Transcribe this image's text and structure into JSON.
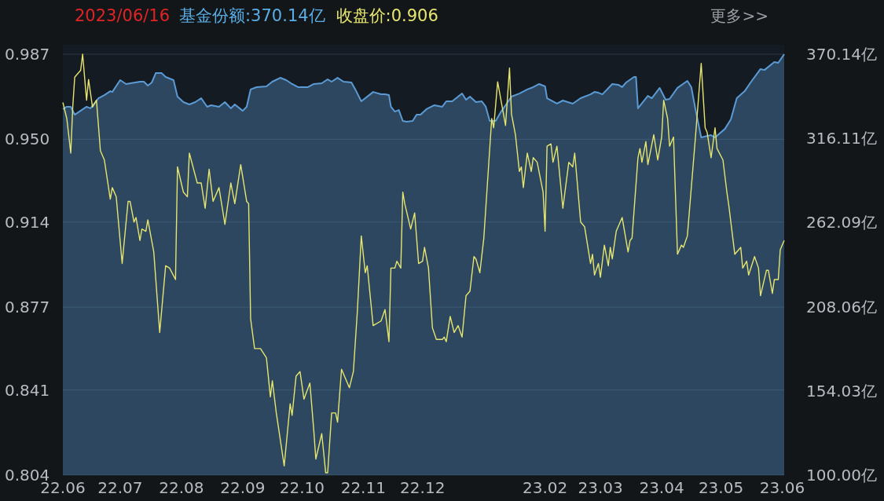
{
  "chart_data": {
    "type": "line",
    "title": "2023/06/16",
    "annotations": [
      "更多>>"
    ],
    "legend": "top left",
    "grid": "y",
    "xlim": [
      "2022-06-16",
      "2023-06-16"
    ],
    "xticks": [
      {
        "value": "2022-06-16",
        "label": "22.06"
      },
      {
        "value": "2022-07-15",
        "label": "22.07"
      },
      {
        "value": "2022-08-15",
        "label": "22.08"
      },
      {
        "value": "2022-09-15",
        "label": "22.09"
      },
      {
        "value": "2022-10-15",
        "label": "22.10"
      },
      {
        "value": "2022-11-15",
        "label": "22.11"
      },
      {
        "value": "2022-12-15",
        "label": "22.12"
      },
      {
        "value": "2023-02-15",
        "label": "23.02"
      },
      {
        "value": "2023-03-15",
        "label": "23.03"
      },
      {
        "value": "2023-04-15",
        "label": "23.04"
      },
      {
        "value": "2023-05-15",
        "label": "23.05"
      },
      {
        "value": "2023-06-15",
        "label": "23.06"
      }
    ],
    "ylim": [
      0.804,
      0.987
    ],
    "yticks": [
      0.987,
      {
        "value": 0.95,
        "label": "0.950"
      },
      0.914,
      0.877,
      0.841,
      0.804
    ],
    "y2lim": [
      100,
      370.14
    ],
    "y2ticks": [
      {
        "value": 370.14,
        "label": "370.14亿"
      },
      {
        "value": 316.11,
        "label": "316.11亿"
      },
      {
        "value": 262.09,
        "label": "262.09亿"
      },
      {
        "value": 208.06,
        "label": "208.06亿"
      },
      {
        "value": 154.03,
        "label": "154.03亿"
      },
      {
        "value": 100,
        "label": "100.00亿"
      }
    ],
    "series": [
      {
        "name": "基金份额:370.14亿",
        "type": "area",
        "axis": "y2",
        "color": "#5b9bd5",
        "x": [
          "2022-06-16",
          "2022-06-18",
          "2022-06-20",
          "2022-06-22",
          "2022-06-28",
          "2022-06-30",
          "2022-07-04",
          "2022-07-07",
          "2022-07-10",
          "2022-07-11",
          "2022-07-15",
          "2022-07-18",
          "2022-07-25",
          "2022-07-27",
          "2022-07-29",
          "2022-07-31",
          "2022-08-02",
          "2022-08-05",
          "2022-08-07",
          "2022-08-11",
          "2022-08-13",
          "2022-08-16",
          "2022-08-19",
          "2022-08-22",
          "2022-08-25",
          "2022-08-28",
          "2022-08-30",
          "2022-09-03",
          "2022-09-06",
          "2022-09-09",
          "2022-09-11",
          "2022-09-15",
          "2022-09-17",
          "2022-09-19",
          "2022-09-22",
          "2022-09-27",
          "2022-09-30",
          "2022-10-04",
          "2022-10-07",
          "2022-10-10",
          "2022-10-13",
          "2022-10-18",
          "2022-10-21",
          "2022-10-25",
          "2022-10-28",
          "2022-10-30",
          "2022-11-02",
          "2022-11-05",
          "2022-11-09",
          "2022-11-11",
          "2022-11-14",
          "2022-11-20",
          "2022-11-24",
          "2022-11-26",
          "2022-11-28",
          "2022-11-29",
          "2022-12-01",
          "2022-12-03",
          "2022-12-05",
          "2022-12-07",
          "2022-12-10",
          "2022-12-12",
          "2022-12-14",
          "2022-12-17",
          "2022-12-21",
          "2022-12-25",
          "2022-12-27",
          "2022-12-30",
          "2023-01-02",
          "2023-01-04",
          "2023-01-06",
          "2023-01-08",
          "2023-01-11",
          "2023-01-14",
          "2023-01-16",
          "2023-01-18",
          "2023-01-21",
          "2023-01-24",
          "2023-01-26",
          "2023-01-29",
          "2023-02-02",
          "2023-02-06",
          "2023-02-09",
          "2023-02-12",
          "2023-02-15",
          "2023-02-16",
          "2023-02-21",
          "2023-02-24",
          "2023-03-01",
          "2023-03-05",
          "2023-03-10",
          "2023-03-12",
          "2023-03-14",
          "2023-03-16",
          "2023-03-21",
          "2023-03-24",
          "2023-03-26",
          "2023-03-28",
          "2023-04-01",
          "2023-04-02",
          "2023-04-03",
          "2023-04-08",
          "2023-04-10",
          "2023-04-14",
          "2023-04-17",
          "2023-04-19",
          "2023-04-23",
          "2023-04-28",
          "2023-04-30",
          "2023-05-02",
          "2023-05-05",
          "2023-05-10",
          "2023-05-12",
          "2023-05-17",
          "2023-05-20",
          "2023-05-23",
          "2023-05-27",
          "2023-05-30",
          "2023-06-04",
          "2023-06-06",
          "2023-06-11",
          "2023-06-13",
          "2023-06-16"
        ],
        "values": [
          334.9,
          336.4,
          336.4,
          331.3,
          336.4,
          335.4,
          341.9,
          343.9,
          346.4,
          345.9,
          353.5,
          351.0,
          352.5,
          352.5,
          350.0,
          352.0,
          358.0,
          358.0,
          355.5,
          353.5,
          342.9,
          339.4,
          337.9,
          339.4,
          341.9,
          336.4,
          337.4,
          336.4,
          339.4,
          335.4,
          337.9,
          333.8,
          336.4,
          347.5,
          349.0,
          349.5,
          352.5,
          355.0,
          353.5,
          351.0,
          349.0,
          349.0,
          351.0,
          351.5,
          354.0,
          352.5,
          355.0,
          352.5,
          352.0,
          347.5,
          339.9,
          345.9,
          344.4,
          344.4,
          343.9,
          336.4,
          333.3,
          334.3,
          327.3,
          326.8,
          327.3,
          331.3,
          331.3,
          334.9,
          337.4,
          336.4,
          339.9,
          339.9,
          342.9,
          344.9,
          340.9,
          342.9,
          339.4,
          339.9,
          336.4,
          327.3,
          327.3,
          333.8,
          337.4,
          342.9,
          344.9,
          347.5,
          349.0,
          351.0,
          349.5,
          341.9,
          338.4,
          340.4,
          338.4,
          341.9,
          344.4,
          345.9,
          345.4,
          344.4,
          351.0,
          350.5,
          349.0,
          352.0,
          355.5,
          355.5,
          335.4,
          343.4,
          341.9,
          348.5,
          340.9,
          341.4,
          348.5,
          353.0,
          349.0,
          335.4,
          316.7,
          318.2,
          316.7,
          322.2,
          328.3,
          341.9,
          346.4,
          352.0,
          360.6,
          360.0,
          365.1,
          364.6,
          370.14
        ]
      },
      {
        "name": "收盘价:0.906",
        "color": "#e6e66e",
        "line_style": "solid",
        "x": [
          "2022-06-16",
          "2022-06-18",
          "2022-06-20",
          "2022-06-21",
          "2022-06-22",
          "2022-06-25",
          "2022-06-26",
          "2022-06-28",
          "2022-06-29",
          "2022-07-01",
          "2022-07-03",
          "2022-07-05",
          "2022-07-07",
          "2022-07-10",
          "2022-07-11",
          "2022-07-13",
          "2022-07-16",
          "2022-07-19",
          "2022-07-20",
          "2022-07-22",
          "2022-07-23",
          "2022-07-25",
          "2022-07-26",
          "2022-07-28",
          "2022-07-29",
          "2022-08-01",
          "2022-08-04",
          "2022-08-07",
          "2022-08-09",
          "2022-08-12",
          "2022-08-13",
          "2022-08-16",
          "2022-08-18",
          "2022-08-19",
          "2022-08-23",
          "2022-08-25",
          "2022-08-27",
          "2022-08-29",
          "2022-08-31",
          "2022-09-03",
          "2022-09-06",
          "2022-09-09",
          "2022-09-11",
          "2022-09-14",
          "2022-09-17",
          "2022-09-18",
          "2022-09-19",
          "2022-09-21",
          "2022-09-24",
          "2022-09-27",
          "2022-09-29",
          "2022-09-30",
          "2022-10-02",
          "2022-10-06",
          "2022-10-09",
          "2022-10-10",
          "2022-10-12",
          "2022-10-14",
          "2022-10-16",
          "2022-10-19",
          "2022-10-21",
          "2022-10-22",
          "2022-10-25",
          "2022-10-27",
          "2022-10-28",
          "2022-10-30",
          "2022-11-01",
          "2022-11-02",
          "2022-11-04",
          "2022-11-08",
          "2022-11-10",
          "2022-11-12",
          "2022-11-14",
          "2022-11-16",
          "2022-11-17",
          "2022-11-20",
          "2022-11-24",
          "2022-11-26",
          "2022-11-28",
          "2022-11-29",
          "2022-12-01",
          "2022-12-02",
          "2022-12-04",
          "2022-12-05",
          "2022-12-06",
          "2022-12-09",
          "2022-12-11",
          "2022-12-13",
          "2022-12-15",
          "2022-12-16",
          "2022-12-18",
          "2022-12-20",
          "2022-12-22",
          "2022-12-25",
          "2022-12-26",
          "2022-12-27",
          "2022-12-29",
          "2022-12-31",
          "2023-01-02",
          "2023-01-04",
          "2023-01-06",
          "2023-01-08",
          "2023-01-10",
          "2023-01-11",
          "2023-01-13",
          "2023-01-15",
          "2023-01-19",
          "2023-01-20",
          "2023-01-22",
          "2023-01-26",
          "2023-01-28",
          "2023-01-29",
          "2023-01-31",
          "2023-02-02",
          "2023-02-03",
          "2023-02-04",
          "2023-02-06",
          "2023-02-08",
          "2023-02-09",
          "2023-02-11",
          "2023-02-14",
          "2023-02-15",
          "2023-02-16",
          "2023-02-18",
          "2023-02-19",
          "2023-02-21",
          "2023-02-24",
          "2023-02-27",
          "2023-03-01",
          "2023-03-02",
          "2023-03-05",
          "2023-03-07",
          "2023-03-10",
          "2023-03-11",
          "2023-03-12",
          "2023-03-14",
          "2023-03-15",
          "2023-03-17",
          "2023-03-19",
          "2023-03-20",
          "2023-03-21",
          "2023-03-23",
          "2023-03-26",
          "2023-03-29",
          "2023-03-30",
          "2023-03-31",
          "2023-04-03",
          "2023-04-04",
          "2023-04-05",
          "2023-04-07",
          "2023-04-08",
          "2023-04-11",
          "2023-04-13",
          "2023-04-15",
          "2023-04-16",
          "2023-04-18",
          "2023-04-19",
          "2023-04-21",
          "2023-04-23",
          "2023-04-25",
          "2023-04-26",
          "2023-04-28",
          "2023-05-02",
          "2023-05-05",
          "2023-05-07",
          "2023-05-08",
          "2023-05-10",
          "2023-05-12",
          "2023-05-13",
          "2023-05-16",
          "2023-05-18",
          "2023-05-19",
          "2023-05-22",
          "2023-05-25",
          "2023-05-26",
          "2023-05-28",
          "2023-05-29",
          "2023-06-01",
          "2023-06-03",
          "2023-06-04",
          "2023-06-07",
          "2023-06-08",
          "2023-06-10",
          "2023-06-11",
          "2023-06-13",
          "2023-06-14",
          "2023-06-16"
        ],
        "values": [
          0.966,
          0.959,
          0.944,
          0.964,
          0.977,
          0.98,
          0.987,
          0.967,
          0.976,
          0.964,
          0.967,
          0.945,
          0.941,
          0.924,
          0.929,
          0.925,
          0.896,
          0.923,
          0.923,
          0.914,
          0.916,
          0.906,
          0.911,
          0.91,
          0.915,
          0.901,
          0.866,
          0.895,
          0.894,
          0.889,
          0.938,
          0.927,
          0.925,
          0.944,
          0.931,
          0.931,
          0.92,
          0.937,
          0.923,
          0.929,
          0.913,
          0.931,
          0.922,
          0.939,
          0.923,
          0.922,
          0.872,
          0.859,
          0.859,
          0.855,
          0.838,
          0.845,
          0.831,
          0.808,
          0.835,
          0.83,
          0.847,
          0.849,
          0.837,
          0.844,
          0.823,
          0.811,
          0.822,
          0.805,
          0.805,
          0.831,
          0.831,
          0.827,
          0.85,
          0.842,
          0.849,
          0.875,
          0.908,
          0.892,
          0.895,
          0.869,
          0.871,
          0.876,
          0.862,
          0.894,
          0.894,
          0.897,
          0.894,
          0.927,
          0.922,
          0.911,
          0.918,
          0.896,
          0.897,
          0.903,
          0.894,
          0.868,
          0.863,
          0.863,
          0.864,
          0.862,
          0.873,
          0.866,
          0.869,
          0.864,
          0.882,
          0.884,
          0.899,
          0.898,
          0.892,
          0.907,
          0.959,
          0.955,
          0.975,
          0.956,
          0.981,
          0.961,
          0.952,
          0.936,
          0.938,
          0.929,
          0.944,
          0.936,
          0.942,
          0.94,
          0.927,
          0.91,
          0.947,
          0.948,
          0.94,
          0.947,
          0.92,
          0.94,
          0.938,
          0.944,
          0.914,
          0.912,
          0.896,
          0.9,
          0.891,
          0.896,
          0.89,
          0.904,
          0.895,
          0.903,
          0.898,
          0.91,
          0.916,
          0.901,
          0.906,
          0.907,
          0.942,
          0.946,
          0.94,
          0.949,
          0.939,
          0.952,
          0.941,
          0.951,
          0.967,
          0.959,
          0.947,
          0.951,
          0.9,
          0.904,
          0.903,
          0.908,
          0.95,
          0.983,
          0.955,
          0.953,
          0.942,
          0.955,
          0.946,
          0.941,
          0.927,
          0.921,
          0.9,
          0.903,
          0.894,
          0.897,
          0.891,
          0.899,
          0.894,
          0.882,
          0.893,
          0.893,
          0.883,
          0.889,
          0.889,
          0.902,
          0.906
        ]
      }
    ]
  }
}
